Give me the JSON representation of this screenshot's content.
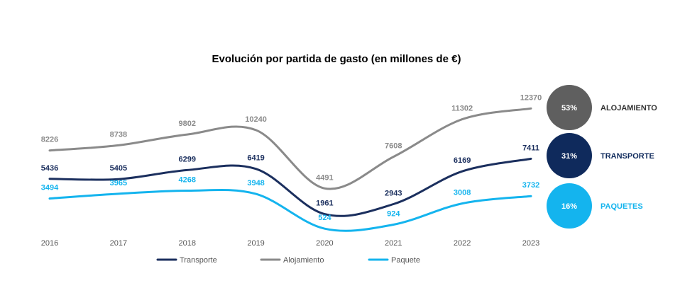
{
  "chart_data": {
    "type": "line",
    "title": "Evolución por partida de gasto (en millones de €)",
    "xlabel": "",
    "ylabel": "",
    "grid": false,
    "legend_position": "bottom",
    "ylim": [
      0,
      13000
    ],
    "x": [
      "2016",
      "2017",
      "2018",
      "2019",
      "2020",
      "2021",
      "2022",
      "2023"
    ],
    "series": [
      {
        "name": "Transporte",
        "color": "#1b2f5e",
        "values": [
          5436,
          5405,
          6299,
          6419,
          1961,
          2943,
          6169,
          7411
        ]
      },
      {
        "name": "Alojamiento",
        "color": "#8a8a8a",
        "values": [
          8226,
          8738,
          9802,
          10240,
          4491,
          7608,
          11302,
          12370
        ]
      },
      {
        "name": "Paquete",
        "color": "#14b4ee",
        "values": [
          3494,
          3965,
          4268,
          3948,
          524,
          924,
          3008,
          3732
        ]
      }
    ],
    "badges": [
      {
        "percent": "53%",
        "label": "ALOJAMIENTO",
        "circle_color": "#5f5f5f",
        "label_color": "#333333"
      },
      {
        "percent": "31%",
        "label": "TRANSPORTE",
        "circle_color": "#0f2a5c",
        "label_color": "#0f2a5c"
      },
      {
        "percent": "16%",
        "label": "PAQUETES",
        "circle_color": "#14b4ee",
        "label_color": "#14b4ee"
      }
    ]
  }
}
